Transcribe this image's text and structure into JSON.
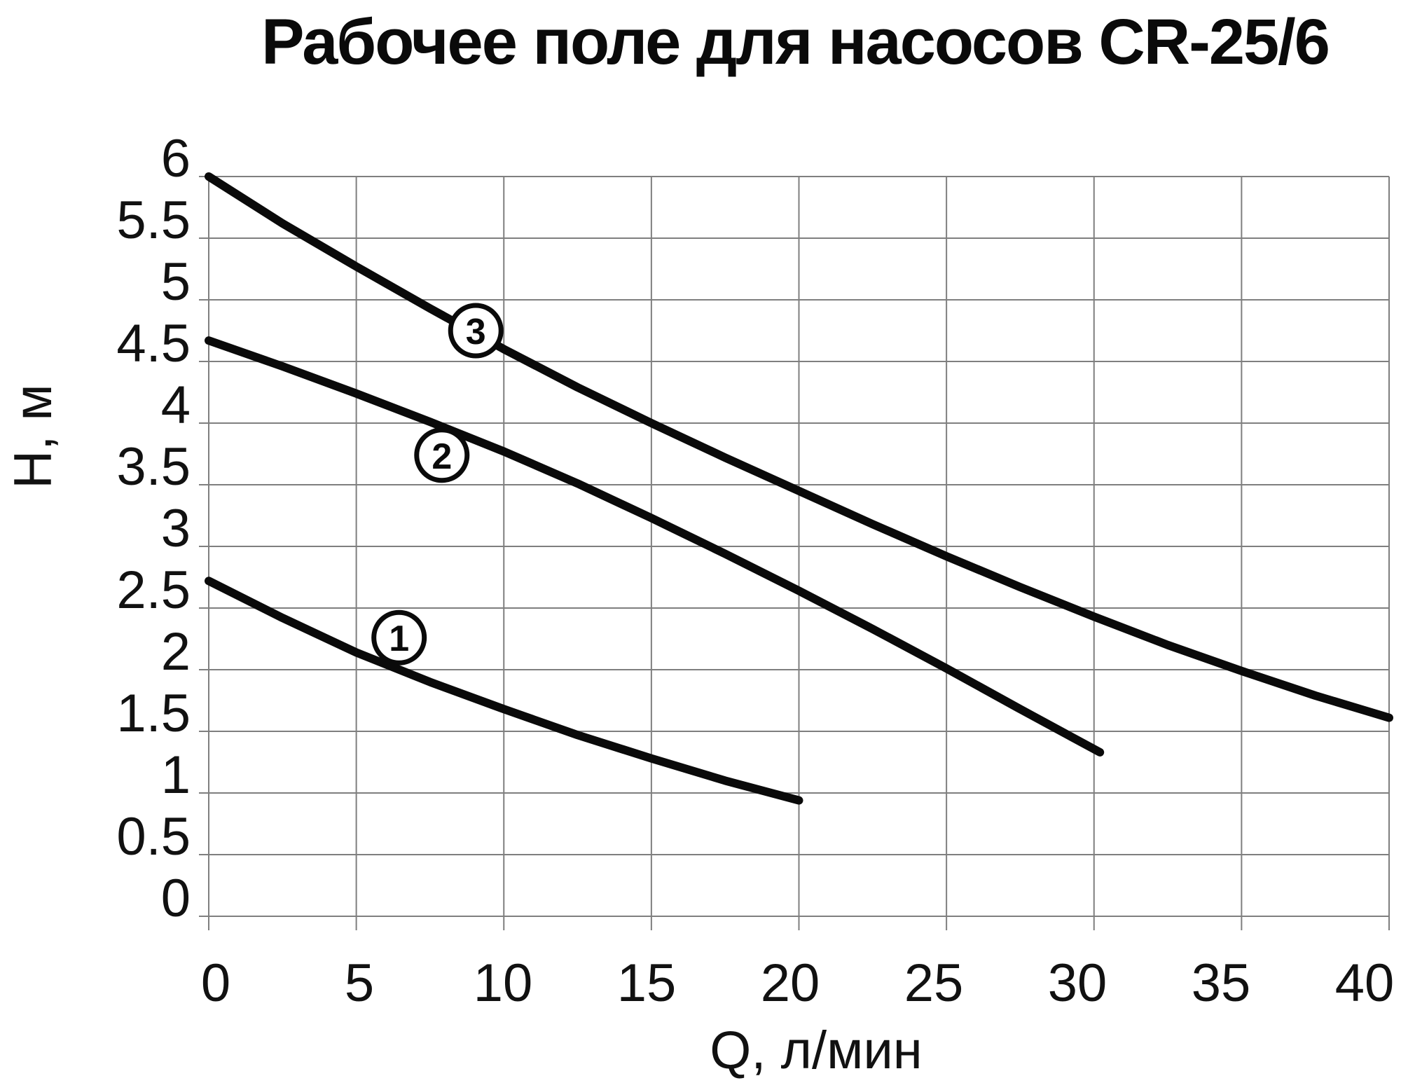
{
  "chart_data": {
    "type": "line",
    "title": "Рабочее поле для насосов CR-25/6",
    "xlabel": "Q, л/мин",
    "ylabel": "Н, м",
    "grid": true,
    "legend_position": "none",
    "x_axis": {
      "min": 0,
      "max": 40,
      "step": 5,
      "tick_labels": [
        "0",
        "5",
        "10",
        "15",
        "20",
        "25",
        "30",
        "35",
        "40"
      ]
    },
    "y_axis": {
      "min": 0,
      "max": 6,
      "step": 0.5,
      "tick_labels": [
        "0",
        "0.5",
        "1",
        "1.5",
        "2",
        "2.5",
        "3",
        "3.5",
        "4",
        "4.5",
        "5",
        "5.5",
        "6"
      ]
    },
    "series": [
      {
        "name": "1",
        "badge": {
          "label": "1",
          "q": 6.45,
          "h": 2.26
        },
        "points": [
          [
            0,
            2.72
          ],
          [
            2.5,
            2.42
          ],
          [
            5,
            2.14
          ],
          [
            7.5,
            1.9
          ],
          [
            10,
            1.68
          ],
          [
            12.5,
            1.47
          ],
          [
            15,
            1.28
          ],
          [
            17.5,
            1.1
          ],
          [
            20,
            0.94
          ]
        ]
      },
      {
        "name": "2",
        "badge": {
          "label": "2",
          "q": 7.9,
          "h": 3.74
        },
        "points": [
          [
            0,
            4.67
          ],
          [
            2.5,
            4.46
          ],
          [
            5,
            4.24
          ],
          [
            7.5,
            4.01
          ],
          [
            10,
            3.77
          ],
          [
            12.5,
            3.51
          ],
          [
            15,
            3.23
          ],
          [
            17.5,
            2.94
          ],
          [
            20,
            2.64
          ],
          [
            22.5,
            2.33
          ],
          [
            25,
            2.01
          ],
          [
            27.5,
            1.68
          ],
          [
            30.2,
            1.33
          ]
        ]
      },
      {
        "name": "3",
        "badge": {
          "label": "3",
          "q": 9.05,
          "h": 4.75
        },
        "points": [
          [
            0,
            6.0
          ],
          [
            2.5,
            5.62
          ],
          [
            5,
            5.27
          ],
          [
            7.5,
            4.93
          ],
          [
            10,
            4.6
          ],
          [
            12.5,
            4.29
          ],
          [
            15,
            4.0
          ],
          [
            17.5,
            3.72
          ],
          [
            20,
            3.45
          ],
          [
            22.5,
            3.18
          ],
          [
            25,
            2.92
          ],
          [
            27.5,
            2.67
          ],
          [
            30,
            2.43
          ],
          [
            32.5,
            2.2
          ],
          [
            35,
            1.99
          ],
          [
            37.5,
            1.79
          ],
          [
            40,
            1.61
          ]
        ]
      }
    ],
    "colors": {
      "curve": "#0a0a0a",
      "grid": "#7f7f7f",
      "text": "#111111",
      "badge_fill": "#ffffff",
      "background": "#ffffff"
    }
  }
}
